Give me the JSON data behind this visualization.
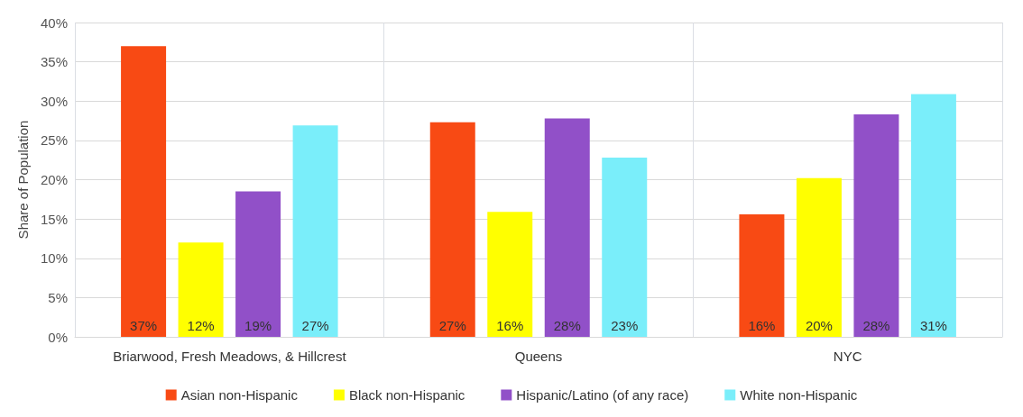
{
  "chart_data": {
    "type": "bar",
    "ylabel": "Share of Population",
    "categories": [
      "Briarwood, Fresh Meadows, & Hillcrest",
      "Queens",
      "NYC"
    ],
    "series": [
      {
        "name": "Asian non-Hispanic",
        "color": "#f84a14",
        "values": [
          37,
          27.3,
          15.6
        ],
        "value_labels": [
          "37%",
          "27%",
          "16%"
        ]
      },
      {
        "name": "Black non-Hispanic",
        "color": "#ffff00",
        "values": [
          12,
          15.9,
          20.2
        ],
        "value_labels": [
          "12%",
          "16%",
          "20%"
        ]
      },
      {
        "name": "Hispanic/Latino (of any race)",
        "color": "#9150c8",
        "values": [
          18.5,
          27.8,
          28.3
        ],
        "value_labels": [
          "19%",
          "28%",
          "28%"
        ]
      },
      {
        "name": "White non-Hispanic",
        "color": "#7aeefa",
        "values": [
          26.9,
          22.8,
          30.9
        ],
        "value_labels": [
          "27%",
          "23%",
          "31%"
        ]
      }
    ],
    "ylim": [
      0,
      40
    ],
    "yticks": [
      {
        "value": 0,
        "label": "0%"
      },
      {
        "value": 5,
        "label": "5%"
      },
      {
        "value": 10,
        "label": "10%"
      },
      {
        "value": 15,
        "label": "15%"
      },
      {
        "value": 20,
        "label": "20%"
      },
      {
        "value": 25,
        "label": "25%"
      },
      {
        "value": 30,
        "label": "30%"
      },
      {
        "value": 35,
        "label": "35%"
      },
      {
        "value": 40,
        "label": "40%"
      }
    ],
    "grid": true,
    "legend": "bottom"
  }
}
